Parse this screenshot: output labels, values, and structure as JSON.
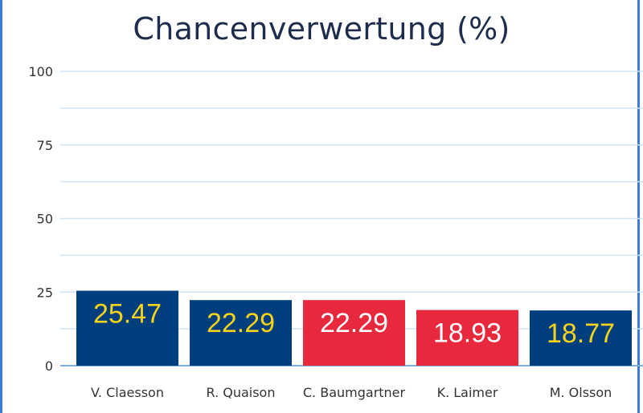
{
  "chart_data": {
    "type": "bar",
    "title": "Chancenverwertung (%)",
    "xlabel": "",
    "ylabel": "",
    "ylim": [
      0,
      100
    ],
    "yticks": [
      "0",
      "25",
      "50",
      "75",
      "100"
    ],
    "grid": true,
    "categories": [
      "V. Claesson",
      "R. Quaison",
      "C. Baumgartner",
      "K. Laimer",
      "M. Olsson"
    ],
    "values": [
      25.47,
      22.29,
      22.29,
      18.93,
      18.77
    ],
    "labels": [
      "25.47",
      "22.29",
      "22.29",
      "18.93",
      "18.77"
    ],
    "bar_colors": [
      "#003e7e",
      "#003e7e",
      "#e8283c",
      "#e8283c",
      "#003e7e"
    ],
    "label_colors": [
      "#f5d31a",
      "#f5d31a",
      "#ffffff",
      "#ffffff",
      "#f5d31a"
    ],
    "grid_color": "#cfe3f5",
    "axis_color": "#7ab0e0"
  }
}
